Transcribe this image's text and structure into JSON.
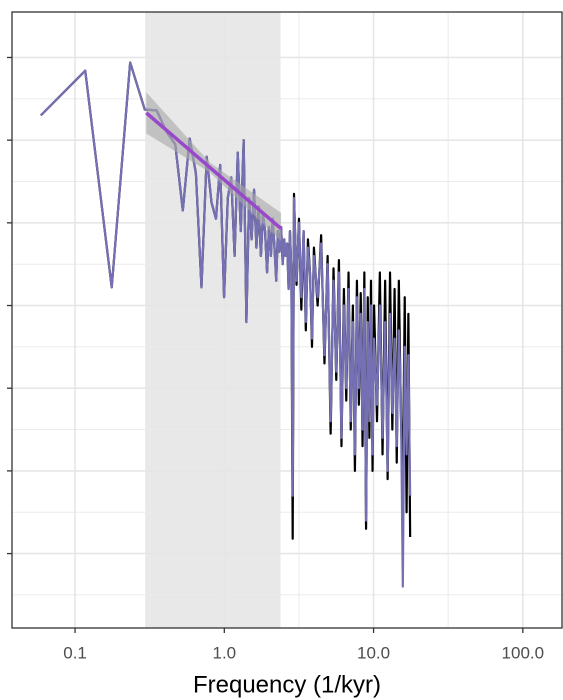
{
  "chart_data": {
    "type": "line",
    "x_label": "Frequency (1/kyr)",
    "xscale": "log",
    "xlim": [
      0.0378,
      183
    ],
    "xticks": [
      {
        "value": 0.1,
        "label": "0.1"
      },
      {
        "value": 1,
        "label": "1.0"
      },
      {
        "value": 10,
        "label": "10.0"
      },
      {
        "value": 100,
        "label": "100.0"
      }
    ],
    "xminor": [
      0.316,
      3.16,
      31.6
    ],
    "ylim": [
      -0.9,
      6.55
    ],
    "yticks": [
      0,
      1,
      2,
      3,
      4,
      5,
      6
    ],
    "yminor": [
      -0.5,
      0.5,
      1.5,
      2.5,
      3.5,
      4.5,
      5.5
    ],
    "grid": true,
    "shade": {
      "x": [
        0.295,
        2.38
      ],
      "color": "#e8e8e8"
    },
    "x": [
      0.059,
      0.117,
      0.176,
      0.234,
      0.293,
      0.352,
      0.41,
      0.469,
      0.527,
      0.586,
      0.645,
      0.703,
      0.762,
      0.82,
      0.879,
      0.938,
      0.996,
      1.055,
      1.113,
      1.172,
      1.23,
      1.289,
      1.348,
      1.406,
      1.465,
      1.523,
      1.582,
      1.641,
      1.699,
      1.758,
      1.816,
      1.875,
      1.934,
      1.992,
      2.051,
      2.109,
      2.168,
      2.227,
      2.285,
      2.344,
      2.402,
      2.461,
      2.52,
      2.578,
      2.637,
      2.695,
      2.754,
      2.813,
      2.871,
      2.93,
      3.047,
      3.164,
      3.281,
      3.398,
      3.516,
      3.633,
      3.75,
      3.867,
      3.984,
      4.219,
      4.453,
      4.688,
      4.922,
      5.156,
      5.391,
      5.625,
      5.859,
      6.094,
      6.328,
      6.563,
      6.797,
      7.031,
      7.266,
      7.5,
      7.734,
      7.969,
      8.203,
      8.438,
      8.672,
      8.906,
      9.141,
      9.375,
      9.609,
      9.844,
      10.078,
      10.547,
      11.016,
      11.484,
      11.953,
      12.422,
      12.891,
      13.359,
      13.828,
      14.297,
      14.766,
      15.234,
      15.703,
      16.172,
      16.641,
      17.109,
      17.578
    ],
    "series": [
      {
        "color": "#000000",
        "values": [
          5.3,
          5.84,
          3.22,
          5.94,
          5.37,
          5.36,
          5.1,
          4.95,
          4.15,
          5.02,
          4.6,
          3.22,
          4.8,
          4.25,
          4.05,
          4.7,
          3.1,
          4.3,
          4.55,
          3.6,
          4.85,
          3.9,
          5.0,
          2.8,
          4.3,
          3.8,
          4.4,
          3.7,
          4.2,
          3.6,
          4.1,
          3.9,
          3.4,
          3.95,
          3.6,
          4.05,
          3.7,
          3.3,
          3.9,
          3.65,
          3.95,
          3.5,
          3.8,
          3.6,
          3.75,
          3.2,
          3.9,
          3.4,
          0.18,
          4.35,
          3.25,
          4.05,
          2.95,
          3.9,
          2.7,
          3.8,
          3.4,
          2.5,
          3.7,
          3.0,
          3.85,
          2.3,
          3.6,
          1.45,
          3.45,
          2.1,
          3.55,
          1.3,
          3.2,
          1.85,
          3.4,
          1.5,
          3.0,
          1.0,
          3.3,
          1.8,
          3.15,
          1.3,
          3.4,
          0.3,
          3.1,
          1.4,
          3.3,
          1.0,
          3.0,
          1.6,
          3.4,
          1.2,
          3.3,
          0.9,
          3.4,
          1.5,
          3.2,
          1.1,
          3.3,
          1.7,
          0.8,
          3.1,
          0.5,
          2.9,
          0.2
        ]
      },
      {
        "color": "#7570b3",
        "values": [
          5.3,
          5.84,
          3.22,
          5.94,
          5.37,
          5.36,
          5.1,
          4.95,
          4.15,
          5.02,
          4.6,
          3.22,
          4.8,
          4.25,
          4.05,
          4.7,
          3.1,
          4.3,
          4.55,
          3.6,
          4.85,
          3.9,
          5.0,
          2.8,
          4.3,
          3.8,
          4.4,
          3.7,
          4.2,
          3.6,
          4.1,
          3.9,
          3.4,
          3.95,
          3.6,
          4.05,
          3.7,
          3.3,
          3.9,
          3.65,
          3.95,
          3.5,
          3.8,
          3.6,
          3.75,
          3.2,
          3.9,
          3.4,
          0.7,
          4.3,
          3.3,
          4.0,
          3.1,
          3.9,
          2.8,
          3.7,
          3.4,
          2.6,
          3.6,
          3.1,
          3.75,
          2.4,
          3.5,
          1.6,
          3.3,
          2.2,
          3.4,
          1.4,
          3.0,
          2.0,
          3.2,
          1.6,
          2.8,
          1.2,
          3.1,
          2.0,
          2.9,
          1.5,
          3.2,
          0.4,
          2.8,
          1.6,
          3.0,
          1.2,
          2.6,
          1.8,
          3.0,
          1.4,
          2.8,
          1.0,
          2.9,
          1.7,
          2.6,
          1.3,
          2.7,
          1.9,
          -0.4,
          2.5,
          1.2,
          2.4,
          0.7
        ]
      }
    ],
    "trend": {
      "color": "#9948cc",
      "x": [
        0.3,
        0.8,
        2.4
      ],
      "values": [
        5.33,
        4.67,
        3.93
      ],
      "upper": [
        5.58,
        4.73,
        4.12
      ],
      "lower": [
        5.08,
        4.61,
        3.78
      ],
      "ribbon_color": "#a6a6a6"
    }
  }
}
